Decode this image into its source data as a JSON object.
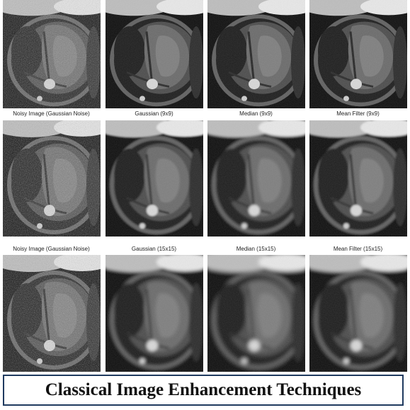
{
  "rows": [
    {
      "labels": [
        "",
        "",
        "",
        ""
      ],
      "blur": [
        0.3,
        0.3,
        0.3,
        0.3
      ]
    },
    {
      "labels": [
        "Noisy Image (Gaussian Noise)",
        "Gaussian (9x9)",
        "Median (9x9)",
        "Mean Filter (9x9)"
      ],
      "blur": [
        0.3,
        1.2,
        1.6,
        1.4
      ]
    },
    {
      "labels": [
        "Noisy Image (Gaussian Noise)",
        "Gaussian (15x15)",
        "Median (15x15)",
        "Mean Filter (15x15)"
      ],
      "blur": [
        0.3,
        2.2,
        3.0,
        2.4
      ]
    }
  ],
  "banner": {
    "title": "Classical Image Enhancement Techniques",
    "border_color": "#1f3a5f"
  }
}
